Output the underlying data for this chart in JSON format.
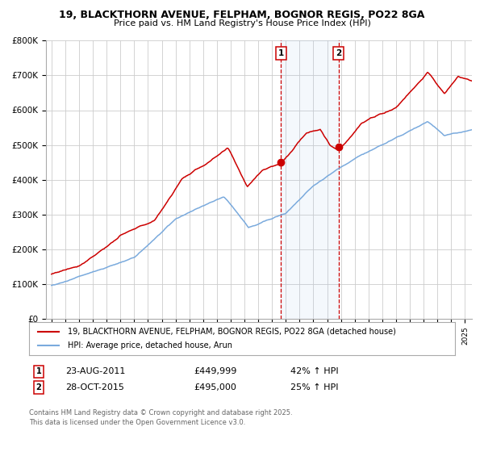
{
  "title1": "19, BLACKTHORN AVENUE, FELPHAM, BOGNOR REGIS, PO22 8GA",
  "title2": "Price paid vs. HM Land Registry's House Price Index (HPI)",
  "background_color": "#ffffff",
  "plot_bg_color": "#ffffff",
  "grid_color": "#cccccc",
  "red_color": "#cc0000",
  "blue_color": "#7aaadd",
  "dashed_color": "#cc0000",
  "legend_label_red": "19, BLACKTHORN AVENUE, FELPHAM, BOGNOR REGIS, PO22 8GA (detached house)",
  "legend_label_blue": "HPI: Average price, detached house, Arun",
  "annotation1_label": "1",
  "annotation1_date": "23-AUG-2011",
  "annotation1_price": "£449,999",
  "annotation1_hpi": "42% ↑ HPI",
  "annotation2_label": "2",
  "annotation2_date": "28-OCT-2015",
  "annotation2_price": "£495,000",
  "annotation2_hpi": "25% ↑ HPI",
  "footnote": "Contains HM Land Registry data © Crown copyright and database right 2025.\nThis data is licensed under the Open Government Licence v3.0.",
  "sale1_x": 2011.64,
  "sale1_y": 449999,
  "sale2_x": 2015.83,
  "sale2_y": 495000,
  "ylim": [
    0,
    800000
  ],
  "xlim": [
    1994.6,
    2025.5
  ]
}
